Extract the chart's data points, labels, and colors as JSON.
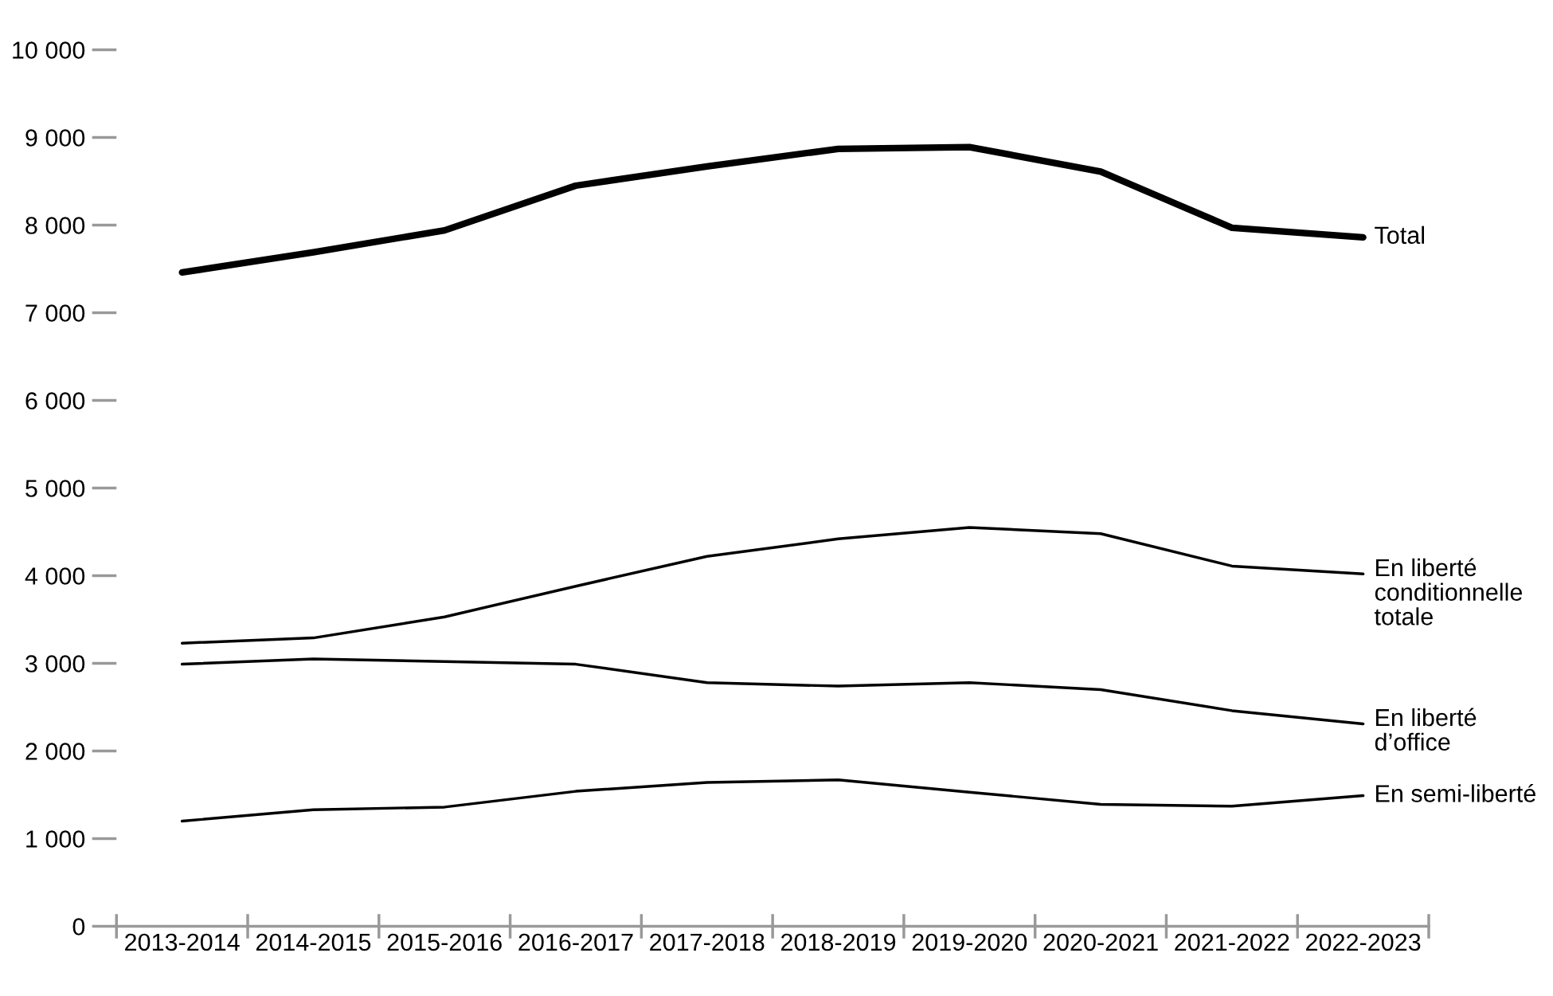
{
  "chart_data": {
    "type": "line",
    "categories": [
      "2013-2014",
      "2014-2015",
      "2015-2016",
      "2016-2017",
      "2017-2018",
      "2018-2019",
      "2019-2020",
      "2020-2021",
      "2021-2022",
      "2022-2023"
    ],
    "series": [
      {
        "name": "Total",
        "color": "#000000",
        "values": [
          7460,
          7690,
          7940,
          8450,
          8670,
          8870,
          8890,
          8610,
          7970,
          7860
        ]
      },
      {
        "name": "En liberté\nconditionnelle\ntotale",
        "color": "#000000",
        "values": [
          3230,
          3290,
          3530,
          3880,
          4220,
          4420,
          4550,
          4480,
          4110,
          4020
        ]
      },
      {
        "name": "En liberté\nd’office",
        "color": "#000000",
        "values": [
          2990,
          3050,
          3020,
          2990,
          2780,
          2740,
          2780,
          2700,
          2460,
          2310
        ]
      },
      {
        "name": "En semi-liberté",
        "color": "#000000",
        "values": [
          1200,
          1330,
          1360,
          1540,
          1640,
          1670,
          1530,
          1390,
          1370,
          1490
        ]
      }
    ],
    "ylim": [
      0,
      10000
    ],
    "yticks": [
      0,
      {
        "value": 1000,
        "label": "1 000"
      },
      {
        "value": 2000,
        "label": "2 000"
      },
      {
        "value": 3000,
        "label": "3 000"
      },
      {
        "value": 4000,
        "label": "4 000"
      },
      {
        "value": 5000,
        "label": "5 000"
      },
      {
        "value": 6000,
        "label": "6 000"
      },
      {
        "value": 7000,
        "label": "7 000"
      },
      {
        "value": 8000,
        "label": "8 000"
      },
      {
        "value": 9000,
        "label": "9 000"
      },
      {
        "value": 10000,
        "label": "10 000"
      }
    ],
    "grid": false,
    "legend": false,
    "marker": "none",
    "line_style": "solid"
  }
}
